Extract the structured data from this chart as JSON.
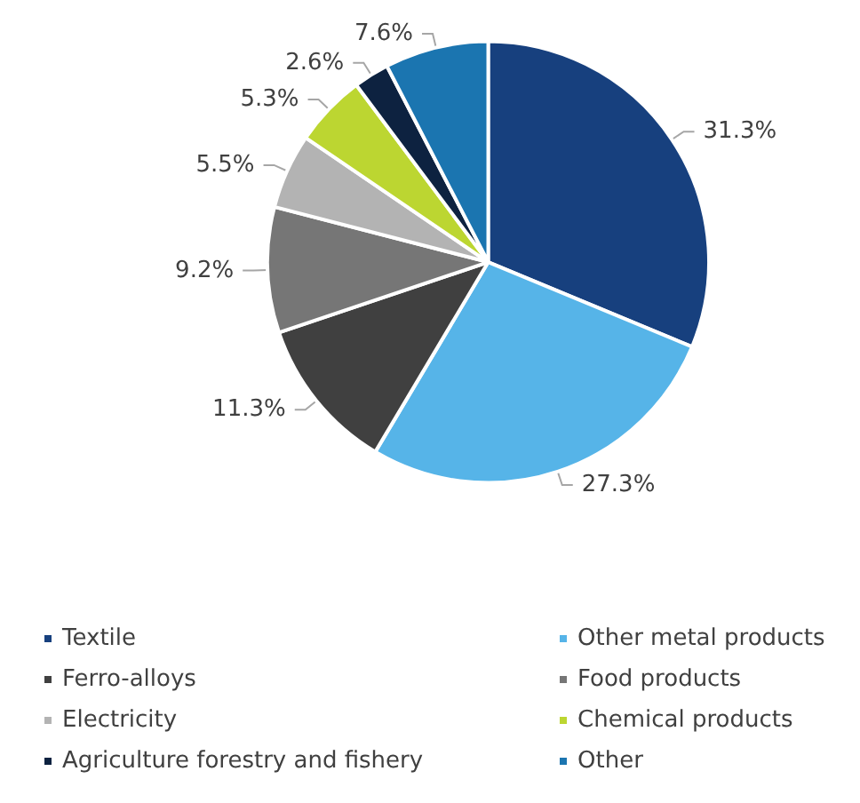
{
  "chart_data": {
    "type": "pie",
    "categories": [
      "Textile",
      "Other metal products",
      "Ferro-alloys",
      "Food products",
      "Electricity",
      "Chemical products",
      "Agriculture forestry and fishery",
      "Other"
    ],
    "values": [
      31.3,
      27.3,
      11.3,
      9.2,
      5.5,
      5.3,
      2.6,
      7.6
    ],
    "colors": [
      "#17407e",
      "#56b4e8",
      "#404040",
      "#767676",
      "#b3b3b3",
      "#bcd631",
      "#0d2240",
      "#1b75b0"
    ],
    "value_labels": [
      "31.3%",
      "27.3%",
      "11.3%",
      "9.2%",
      "5.5%",
      "5.3%",
      "2.6%",
      "7.6%"
    ],
    "legend": "bottom"
  }
}
